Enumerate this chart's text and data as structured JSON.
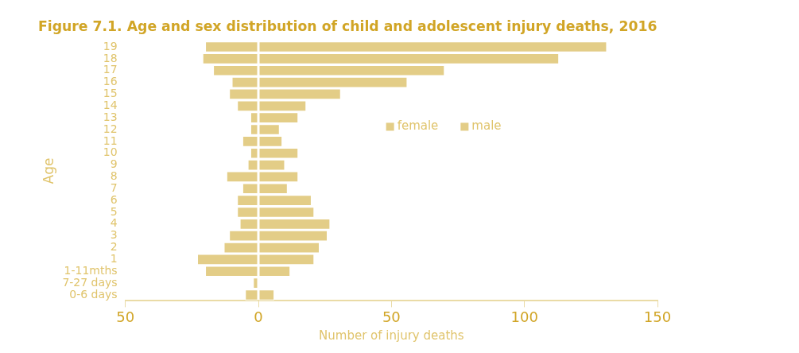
{
  "chart_data": {
    "type": "bar",
    "orientation": "horizontal",
    "stacked": true,
    "title": "Figure 7.1. Age and sex distribution of child and adolescent injury deaths, 2016",
    "xlabel": "Number of injury deaths",
    "ylabel": "Age",
    "categories": [
      "19",
      "18",
      "17",
      "16",
      "15",
      "14",
      "13",
      "12",
      "11",
      "10",
      "9",
      "8",
      "7",
      "6",
      "5",
      "4",
      "3",
      "2",
      "1",
      "1-11mths",
      "7-27 days",
      "0-6 days"
    ],
    "series": [
      {
        "name": "female",
        "color": "#e3cd87",
        "values": [
          -20,
          -21,
          -17,
          -10,
          -11,
          -8,
          -3,
          -3,
          -6,
          -3,
          -4,
          -12,
          -6,
          -8,
          -8,
          -7,
          -11,
          -13,
          -23,
          -20,
          -2,
          -5
        ]
      },
      {
        "name": "male",
        "color": "#e3cd87",
        "values": [
          131,
          113,
          70,
          56,
          31,
          18,
          15,
          8,
          9,
          15,
          10,
          15,
          11,
          20,
          21,
          27,
          26,
          23,
          21,
          12,
          0,
          6
        ]
      }
    ],
    "xlim": [
      -50,
      150
    ],
    "xticks": [
      {
        "value": -50,
        "label": "50"
      },
      0,
      50,
      100,
      150
    ],
    "grid": false,
    "legend": "right"
  }
}
